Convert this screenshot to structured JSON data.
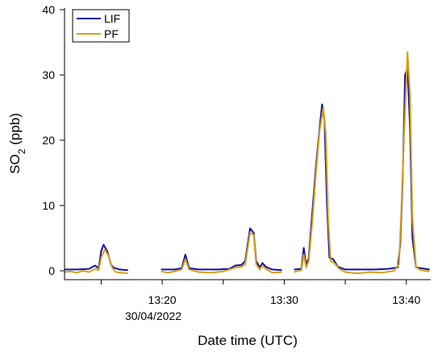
{
  "chart_data": {
    "type": "line",
    "title": "",
    "xlabel": "Date time (UTC)",
    "ylabel": "SO2 (ppb)",
    "ylabel_main": "SO",
    "ylabel_sub": "2",
    "ylabel_rest": " (ppb)",
    "x_unit": "minutes (UTC time of day)",
    "xlim": [
      "13:12",
      "13:42"
    ],
    "ylim": [
      0,
      40
    ],
    "yticks": [
      0,
      10,
      20,
      30,
      40
    ],
    "xticks": [
      {
        "value": "13:15",
        "label": ""
      },
      {
        "value": "13:20",
        "label": "13:20"
      },
      {
        "value": "13:25",
        "label": ""
      },
      {
        "value": "13:30",
        "label": "13:30"
      },
      {
        "value": "13:35",
        "label": ""
      },
      {
        "value": "13:40",
        "label": "13:40"
      }
    ],
    "date_label": "30/04/2022",
    "grid": false,
    "legend": {
      "position": "top-left",
      "frame": true
    },
    "series": [
      {
        "name": "LIF",
        "color": "#1010a0",
        "segments": [
          [
            [
              "13:12.0",
              0.2
            ],
            [
              "13:13.0",
              0.2
            ],
            [
              "13:14.0",
              0.3
            ],
            [
              "13:14.5",
              0.8
            ],
            [
              "13:14.8",
              0.4
            ],
            [
              "13:15.0",
              3.0
            ],
            [
              "13:15.2",
              4.0
            ],
            [
              "13:15.5",
              3.0
            ],
            [
              "13:15.8",
              1.0
            ],
            [
              "13:16.0",
              0.5
            ],
            [
              "13:16.5",
              0.2
            ],
            [
              "13:17.2",
              0.1
            ]
          ],
          [
            [
              "13:19.9",
              0.2
            ],
            [
              "13:21.0",
              0.2
            ],
            [
              "13:21.6",
              0.4
            ],
            [
              "13:21.9",
              2.5
            ],
            [
              "13:22.2",
              0.4
            ],
            [
              "13:23.0",
              0.2
            ],
            [
              "13:24.5",
              0.2
            ],
            [
              "13:25.5",
              0.3
            ],
            [
              "13:26.0",
              0.8
            ],
            [
              "13:26.5",
              0.9
            ],
            [
              "13:26.8",
              1.5
            ],
            [
              "13:27.2",
              6.5
            ],
            [
              "13:27.5",
              5.8
            ],
            [
              "13:27.7",
              1.5
            ],
            [
              "13:28.0",
              0.5
            ],
            [
              "13:28.2",
              1.2
            ],
            [
              "13:28.5",
              0.6
            ],
            [
              "13:29.0",
              0.2
            ],
            [
              "13:29.8",
              0.1
            ]
          ],
          [
            [
              "13:30.8",
              0.2
            ],
            [
              "13:31.4",
              0.3
            ],
            [
              "13:31.6",
              3.5
            ],
            [
              "13:31.8",
              0.8
            ],
            [
              "13:32.0",
              2.0
            ],
            [
              "13:32.3",
              9.0
            ],
            [
              "13:32.6",
              16.0
            ],
            [
              "13:32.9",
              22.0
            ],
            [
              "13:33.1",
              25.5
            ],
            [
              "13:33.3",
              23.0
            ],
            [
              "13:33.5",
              10.0
            ],
            [
              "13:33.7",
              2.0
            ],
            [
              "13:34.0",
              1.8
            ],
            [
              "13:34.4",
              0.6
            ],
            [
              "13:35.0",
              0.2
            ],
            [
              "13:36.5",
              0.2
            ],
            [
              "13:37.5",
              0.2
            ],
            [
              "13:38.5",
              0.3
            ],
            [
              "13:39.3",
              0.5
            ],
            [
              "13:39.5",
              4.0
            ],
            [
              "13:39.7",
              14.0
            ],
            [
              "13:39.9",
              30.0
            ],
            [
              "13:40.1",
              31.0
            ],
            [
              "13:40.3",
              22.0
            ],
            [
              "13:40.5",
              5.0
            ],
            [
              "13:40.8",
              0.5
            ],
            [
              "13:41.2",
              0.4
            ],
            [
              "13:41.9",
              0.2
            ]
          ]
        ]
      },
      {
        "name": "PF",
        "color": "#d4a017",
        "segments": [
          [
            [
              "13:12.0",
              -0.2
            ],
            [
              "13:12.5",
              -0.1
            ],
            [
              "13:13.0",
              -0.3
            ],
            [
              "13:13.5",
              0.0
            ],
            [
              "13:14.0",
              -0.2
            ],
            [
              "13:14.5",
              0.3
            ],
            [
              "13:14.8",
              0.1
            ],
            [
              "13:15.0",
              2.0
            ],
            [
              "13:15.3",
              3.3
            ],
            [
              "13:15.6",
              2.3
            ],
            [
              "13:15.9",
              0.5
            ],
            [
              "13:16.2",
              -0.2
            ],
            [
              "13:16.7",
              -0.3
            ],
            [
              "13:17.2",
              -0.4
            ]
          ],
          [
            [
              "13:19.9",
              -0.1
            ],
            [
              "13:20.5",
              -0.3
            ],
            [
              "13:21.0",
              -0.1
            ],
            [
              "13:21.6",
              0.2
            ],
            [
              "13:21.9",
              1.8
            ],
            [
              "13:22.2",
              0.2
            ],
            [
              "13:23.0",
              -0.2
            ],
            [
              "13:24.0",
              -0.3
            ],
            [
              "13:25.0",
              -0.1
            ],
            [
              "13:25.5",
              0.2
            ],
            [
              "13:26.0",
              0.5
            ],
            [
              "13:26.5",
              0.6
            ],
            [
              "13:26.8",
              1.0
            ],
            [
              "13:27.2",
              5.8
            ],
            [
              "13:27.5",
              5.5
            ],
            [
              "13:27.7",
              1.0
            ],
            [
              "13:28.0",
              0.2
            ],
            [
              "13:28.2",
              0.8
            ],
            [
              "13:28.5",
              0.3
            ],
            [
              "13:29.0",
              -0.3
            ],
            [
              "13:29.8",
              -0.2
            ]
          ],
          [
            [
              "13:30.8",
              -0.2
            ],
            [
              "13:31.4",
              0.1
            ],
            [
              "13:31.6",
              2.5
            ],
            [
              "13:31.8",
              0.5
            ],
            [
              "13:32.0",
              1.5
            ],
            [
              "13:32.3",
              7.5
            ],
            [
              "13:32.6",
              15.0
            ],
            [
              "13:32.9",
              21.5
            ],
            [
              "13:33.2",
              25.0
            ],
            [
              "13:33.4",
              21.0
            ],
            [
              "13:33.6",
              8.0
            ],
            [
              "13:33.8",
              1.5
            ],
            [
              "13:34.1",
              1.2
            ],
            [
              "13:34.5",
              0.3
            ],
            [
              "13:35.0",
              -0.2
            ],
            [
              "13:36.0",
              -0.4
            ],
            [
              "13:37.0",
              -0.2
            ],
            [
              "13:38.0",
              -0.3
            ],
            [
              "13:39.0",
              0.0
            ],
            [
              "13:39.4",
              1.0
            ],
            [
              "13:39.6",
              10.0
            ],
            [
              "13:39.8",
              20.0
            ],
            [
              "13:40.1",
              33.5
            ],
            [
              "13:40.3",
              27.0
            ],
            [
              "13:40.5",
              8.0
            ],
            [
              "13:40.8",
              0.5
            ],
            [
              "13:41.2",
              0.1
            ],
            [
              "13:41.9",
              -0.1
            ]
          ]
        ]
      }
    ]
  }
}
